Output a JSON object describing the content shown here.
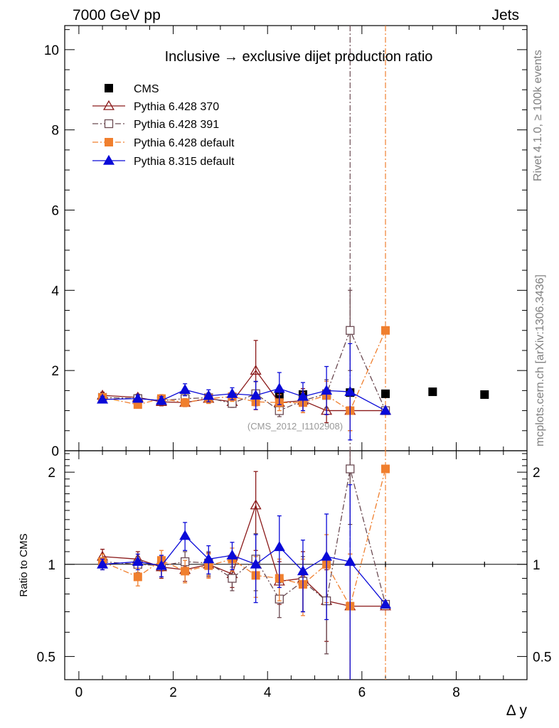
{
  "header": {
    "left": "7000 GeV pp",
    "right": "Jets"
  },
  "side_labels": {
    "rivet": "Rivet 4.1.0, ≥ 100k events",
    "mcplots": "mcplots.cern.ch [arXiv:1306.3436]"
  },
  "watermark": "(CMS_2012_I1102908)",
  "chart_data": {
    "type": "scatter",
    "title": "Inclusive → exclusive dijet production ratio",
    "xlabel": "Δ y",
    "ylabel_ratio": "Ratio to CMS",
    "xlim": [
      -0.3,
      9.5
    ],
    "ylim_main": [
      0,
      10.6
    ],
    "ylim_ratio": [
      0.42,
      2.35
    ],
    "x_ticks": [
      "0",
      "2",
      "4",
      "6",
      "8"
    ],
    "main_y_ticks": [
      "0",
      "2",
      "4",
      "6",
      "8",
      "10"
    ],
    "ratio_y_ticks": [
      "0.5",
      "1",
      "2"
    ],
    "legend": [
      "CMS",
      "Pythia 6.428 370",
      "Pythia 6.428 391",
      "Pythia 6.428 default",
      "Pythia 8.315 default"
    ],
    "overflow_lines_x": [
      5.75,
      6.5
    ],
    "series": [
      {
        "name": "CMS",
        "color": "#000000",
        "marker": "square-filled",
        "line": "none",
        "x": [
          0.5,
          1.25,
          1.75,
          2.25,
          2.75,
          3.25,
          3.75,
          4.25,
          4.75,
          5.25,
          5.75,
          6.5,
          7.5,
          8.6
        ],
        "y": [
          1.3,
          1.3,
          1.27,
          1.28,
          1.32,
          1.3,
          1.38,
          1.37,
          1.4,
          1.38,
          1.45,
          1.42,
          1.47,
          1.4
        ],
        "err": [
          0.02,
          0.02,
          0.02,
          0.02,
          0.02,
          0.02,
          0.02,
          0.02,
          0.03,
          0.03,
          0.03,
          0.04,
          0.04,
          0.04
        ]
      },
      {
        "name": "Pythia 6.428 370",
        "color": "#8b1a1a",
        "marker": "triangle-open",
        "line": "solid",
        "x": [
          0.5,
          1.25,
          1.75,
          2.25,
          2.75,
          3.25,
          3.75,
          4.25,
          4.75,
          5.25,
          5.75,
          6.5
        ],
        "y": [
          1.38,
          1.33,
          1.22,
          1.2,
          1.3,
          1.22,
          2.0,
          1.2,
          1.25,
          1.0,
          1.0,
          1.0
        ],
        "err": [
          0.08,
          0.08,
          0.1,
          0.1,
          0.12,
          0.12,
          0.75,
          0.2,
          0.3,
          0.3,
          0.5,
          0.0
        ],
        "ratio": [
          1.06,
          1.04,
          0.98,
          0.96,
          1.0,
          0.93,
          1.56,
          0.88,
          0.9,
          0.76,
          0.73,
          0.73
        ],
        "ratio_err": [
          0.06,
          0.06,
          0.08,
          0.08,
          0.09,
          0.09,
          0.45,
          0.14,
          0.2,
          0.2,
          0.35,
          0.0
        ]
      },
      {
        "name": "Pythia 6.428 391",
        "color": "#6b4a52",
        "marker": "square-open",
        "line": "dashdot",
        "x": [
          0.5,
          1.25,
          1.75,
          2.25,
          2.75,
          3.25,
          3.75,
          4.25,
          4.75,
          5.25,
          5.75,
          6.5
        ],
        "y": [
          1.33,
          1.3,
          1.25,
          1.3,
          1.32,
          1.18,
          1.42,
          1.0,
          1.25,
          1.42,
          3.0,
          1.0
        ],
        "err": [
          0.08,
          0.08,
          0.1,
          0.1,
          0.12,
          0.1,
          0.3,
          0.15,
          0.25,
          0.35,
          1.0,
          0.0
        ],
        "ratio": [
          1.02,
          1.0,
          0.99,
          1.02,
          1.01,
          0.9,
          1.04,
          0.77,
          0.88,
          0.76,
          2.05,
          0.74
        ],
        "ratio_err": [
          0.06,
          0.06,
          0.08,
          0.08,
          0.09,
          0.08,
          0.22,
          0.1,
          0.18,
          0.25,
          0.7,
          0.0
        ]
      },
      {
        "name": "Pythia 6.428 default",
        "color": "#f07f2e",
        "marker": "square-filled",
        "line": "dashdot",
        "x": [
          0.5,
          1.25,
          1.75,
          2.25,
          2.75,
          3.25,
          3.75,
          4.25,
          4.75,
          5.25,
          5.75,
          6.5
        ],
        "y": [
          1.33,
          1.15,
          1.3,
          1.2,
          1.3,
          1.35,
          1.22,
          1.2,
          1.2,
          1.38,
          1.0,
          3.0
        ],
        "err": [
          0.08,
          0.08,
          0.1,
          0.1,
          0.12,
          0.12,
          0.2,
          0.2,
          0.25,
          0.35,
          0.5,
          0.0
        ],
        "ratio": [
          1.02,
          0.91,
          1.03,
          0.95,
          0.99,
          1.04,
          0.92,
          0.9,
          0.86,
          1.0,
          0.73,
          2.05
        ],
        "ratio_err": [
          0.06,
          0.06,
          0.08,
          0.08,
          0.09,
          0.09,
          0.14,
          0.14,
          0.18,
          0.25,
          0.35,
          0.0
        ]
      },
      {
        "name": "Pythia 8.315 default",
        "color": "#0a0ad8",
        "marker": "triangle-filled",
        "line": "solid",
        "x": [
          0.5,
          1.25,
          1.75,
          2.25,
          2.75,
          3.25,
          3.75,
          4.25,
          4.75,
          5.25,
          5.75,
          6.5
        ],
        "y": [
          1.28,
          1.3,
          1.25,
          1.52,
          1.37,
          1.42,
          1.38,
          1.55,
          1.35,
          1.5,
          1.47,
          1.0
        ],
        "err": [
          0.08,
          0.08,
          0.1,
          0.15,
          0.15,
          0.15,
          0.35,
          0.4,
          0.35,
          0.6,
          1.2,
          0.0
        ],
        "ratio": [
          1.0,
          1.02,
          0.99,
          1.24,
          1.04,
          1.07,
          1.0,
          1.14,
          0.95,
          1.06,
          1.02,
          0.74
        ],
        "ratio_err": [
          0.04,
          0.06,
          0.08,
          0.13,
          0.11,
          0.11,
          0.25,
          0.3,
          0.25,
          0.4,
          0.8,
          0.0
        ]
      }
    ]
  }
}
